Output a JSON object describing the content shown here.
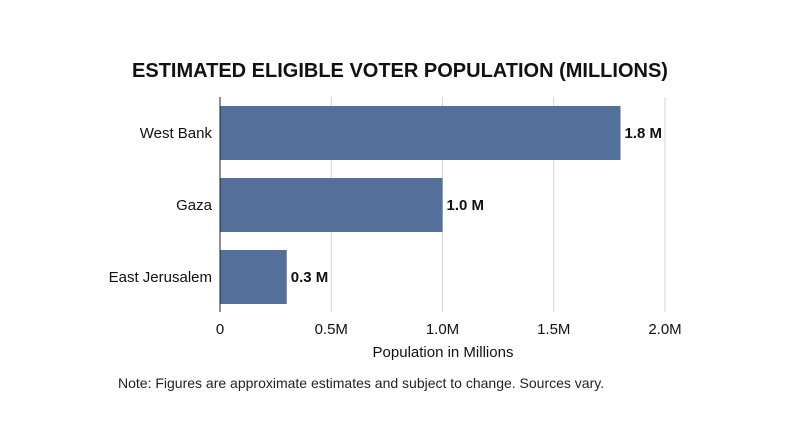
{
  "chart_data": {
    "type": "bar",
    "orientation": "horizontal",
    "title": "ESTIMATED ELIGIBLE VOTER POPULATION (MILLIONS)",
    "categories": [
      "West Bank",
      "Gaza",
      "East Jerusalem"
    ],
    "values": [
      1.8,
      1.0,
      0.3
    ],
    "data_labels": [
      "1.8 M",
      "1.0 M",
      "0.3 M"
    ],
    "xlabel": "Population in Millions",
    "ylabel": "",
    "xlim": [
      0,
      2.0
    ],
    "xticks": [
      0,
      0.5,
      1.0,
      1.5,
      2.0
    ],
    "xtick_labels": [
      "0",
      "0.5M",
      "1.0M",
      "1.5M",
      "2.0M"
    ],
    "grid": true,
    "bar_color": "#54709a"
  },
  "note": "Note: Figures are approximate estimates and subject to change. Sources vary."
}
